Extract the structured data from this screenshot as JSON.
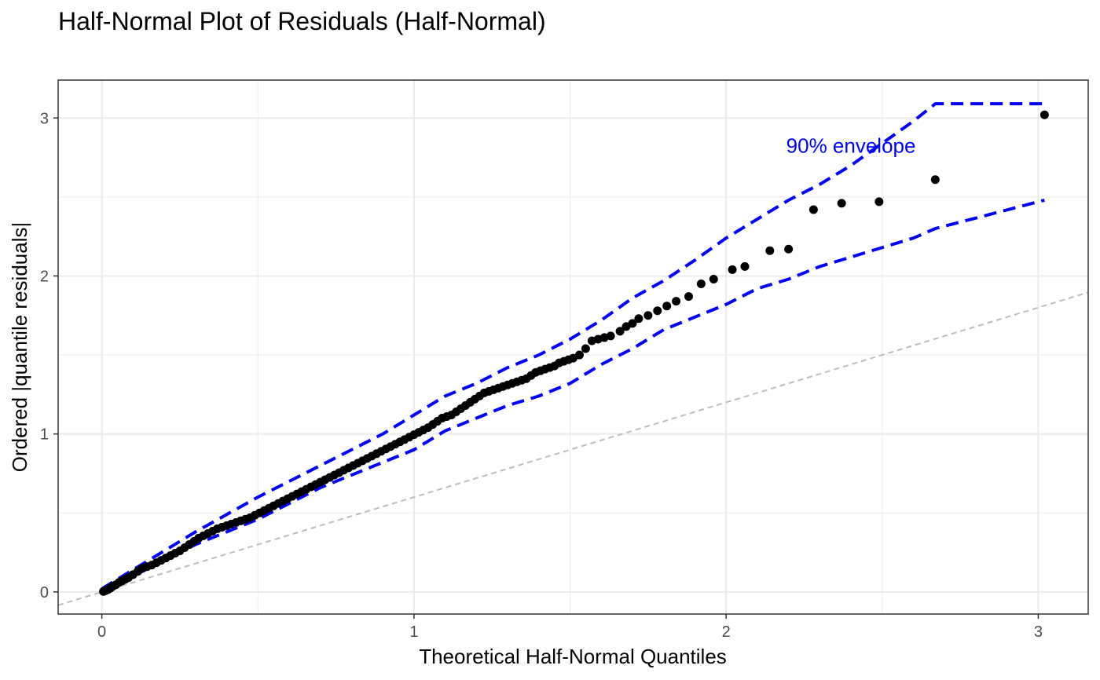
{
  "chart_data": {
    "type": "scatter",
    "title": "Half-Normal Plot of Residuals (Half-Normal)",
    "xlabel": "Theoretical Half-Normal Quantiles",
    "ylabel": "Ordered |quantile residuals|",
    "xlim": [
      -0.14,
      3.16
    ],
    "ylim": [
      -0.14,
      3.24
    ],
    "x_ticks": [
      0,
      1,
      2,
      3
    ],
    "y_ticks": [
      0,
      1,
      2,
      3
    ],
    "grid": true,
    "colors": {
      "points": "#000000",
      "envelope": "#0000ff",
      "reference": "#bebebe",
      "grid": "#ebebeb"
    },
    "annotation": {
      "text": "90% envelope",
      "x": 2.4,
      "y": 2.78,
      "color": "#0000ff"
    },
    "reference_line": {
      "slope": 0.6,
      "intercept": 0,
      "x_range": [
        -0.14,
        3.16
      ]
    },
    "series": [
      {
        "role": "points",
        "x": [
          0.005,
          0.012,
          0.02,
          0.028,
          0.035,
          0.045,
          0.055,
          0.065,
          0.075,
          0.085,
          0.1,
          0.115,
          0.13,
          0.145,
          0.16,
          0.175,
          0.19,
          0.205,
          0.22,
          0.235,
          0.25,
          0.265,
          0.28,
          0.295,
          0.31,
          0.325,
          0.34,
          0.355,
          0.37,
          0.385,
          0.4,
          0.415,
          0.43,
          0.445,
          0.46,
          0.475,
          0.49,
          0.505,
          0.52,
          0.535,
          0.55,
          0.565,
          0.58,
          0.595,
          0.61,
          0.625,
          0.64,
          0.655,
          0.67,
          0.685,
          0.7,
          0.715,
          0.73,
          0.745,
          0.76,
          0.775,
          0.79,
          0.805,
          0.82,
          0.835,
          0.85,
          0.865,
          0.88,
          0.895,
          0.91,
          0.925,
          0.94,
          0.955,
          0.97,
          0.985,
          1.0,
          1.015,
          1.03,
          1.045,
          1.06,
          1.075,
          1.09,
          1.105,
          1.12,
          1.135,
          1.15,
          1.165,
          1.18,
          1.195,
          1.21,
          1.225,
          1.24,
          1.255,
          1.27,
          1.285,
          1.3,
          1.315,
          1.33,
          1.345,
          1.36,
          1.375,
          1.39,
          1.405,
          1.42,
          1.435,
          1.45,
          1.465,
          1.48,
          1.495,
          1.51,
          1.53,
          1.55,
          1.57,
          1.59,
          1.61,
          1.63,
          1.66,
          1.68,
          1.7,
          1.72,
          1.75,
          1.78,
          1.81,
          1.84,
          1.88,
          1.92,
          1.96,
          2.02,
          2.06,
          2.14,
          2.2,
          2.28,
          2.37,
          2.49,
          2.67,
          3.02
        ],
        "y": [
          0.003,
          0.008,
          0.015,
          0.025,
          0.035,
          0.045,
          0.06,
          0.07,
          0.08,
          0.09,
          0.11,
          0.13,
          0.15,
          0.16,
          0.17,
          0.185,
          0.2,
          0.215,
          0.23,
          0.245,
          0.26,
          0.28,
          0.3,
          0.32,
          0.34,
          0.355,
          0.37,
          0.385,
          0.4,
          0.41,
          0.42,
          0.43,
          0.44,
          0.45,
          0.46,
          0.47,
          0.485,
          0.5,
          0.515,
          0.53,
          0.545,
          0.56,
          0.575,
          0.59,
          0.605,
          0.62,
          0.635,
          0.65,
          0.665,
          0.68,
          0.695,
          0.71,
          0.725,
          0.74,
          0.755,
          0.77,
          0.785,
          0.8,
          0.815,
          0.83,
          0.845,
          0.86,
          0.875,
          0.89,
          0.905,
          0.92,
          0.935,
          0.95,
          0.965,
          0.98,
          0.995,
          1.01,
          1.025,
          1.04,
          1.06,
          1.08,
          1.1,
          1.11,
          1.12,
          1.14,
          1.16,
          1.18,
          1.2,
          1.22,
          1.24,
          1.26,
          1.27,
          1.28,
          1.29,
          1.3,
          1.31,
          1.32,
          1.33,
          1.34,
          1.35,
          1.37,
          1.39,
          1.4,
          1.41,
          1.42,
          1.43,
          1.45,
          1.46,
          1.47,
          1.48,
          1.5,
          1.54,
          1.59,
          1.6,
          1.61,
          1.62,
          1.65,
          1.68,
          1.7,
          1.73,
          1.75,
          1.78,
          1.81,
          1.84,
          1.87,
          1.95,
          1.98,
          2.04,
          2.06,
          2.16,
          2.17,
          2.42,
          2.46,
          2.47,
          2.61,
          3.02
        ]
      },
      {
        "role": "envelope-upper",
        "x": [
          0.0,
          0.1,
          0.2,
          0.3,
          0.4,
          0.5,
          0.6,
          0.7,
          0.8,
          0.9,
          1.0,
          1.1,
          1.2,
          1.3,
          1.4,
          1.5,
          1.6,
          1.7,
          1.8,
          1.9,
          2.0,
          2.1,
          2.2,
          2.3,
          2.4,
          2.5,
          2.6,
          2.67,
          3.02
        ],
        "y": [
          0.02,
          0.14,
          0.26,
          0.38,
          0.49,
          0.6,
          0.7,
          0.8,
          0.9,
          1.0,
          1.12,
          1.24,
          1.32,
          1.42,
          1.5,
          1.6,
          1.72,
          1.86,
          1.97,
          2.1,
          2.24,
          2.36,
          2.48,
          2.58,
          2.7,
          2.84,
          2.98,
          3.09,
          3.09
        ]
      },
      {
        "role": "envelope-lower",
        "x": [
          0.0,
          0.1,
          0.2,
          0.3,
          0.4,
          0.5,
          0.6,
          0.7,
          0.8,
          0.9,
          1.0,
          1.1,
          1.2,
          1.3,
          1.4,
          1.5,
          1.6,
          1.7,
          1.8,
          1.9,
          2.0,
          2.1,
          2.2,
          2.3,
          2.4,
          2.5,
          2.6,
          2.67,
          3.02
        ],
        "y": [
          0.0,
          0.1,
          0.2,
          0.3,
          0.38,
          0.46,
          0.56,
          0.66,
          0.74,
          0.82,
          0.9,
          1.02,
          1.1,
          1.18,
          1.24,
          1.32,
          1.44,
          1.54,
          1.66,
          1.74,
          1.82,
          1.92,
          1.98,
          2.06,
          2.12,
          2.18,
          2.24,
          2.3,
          2.48
        ]
      }
    ]
  }
}
